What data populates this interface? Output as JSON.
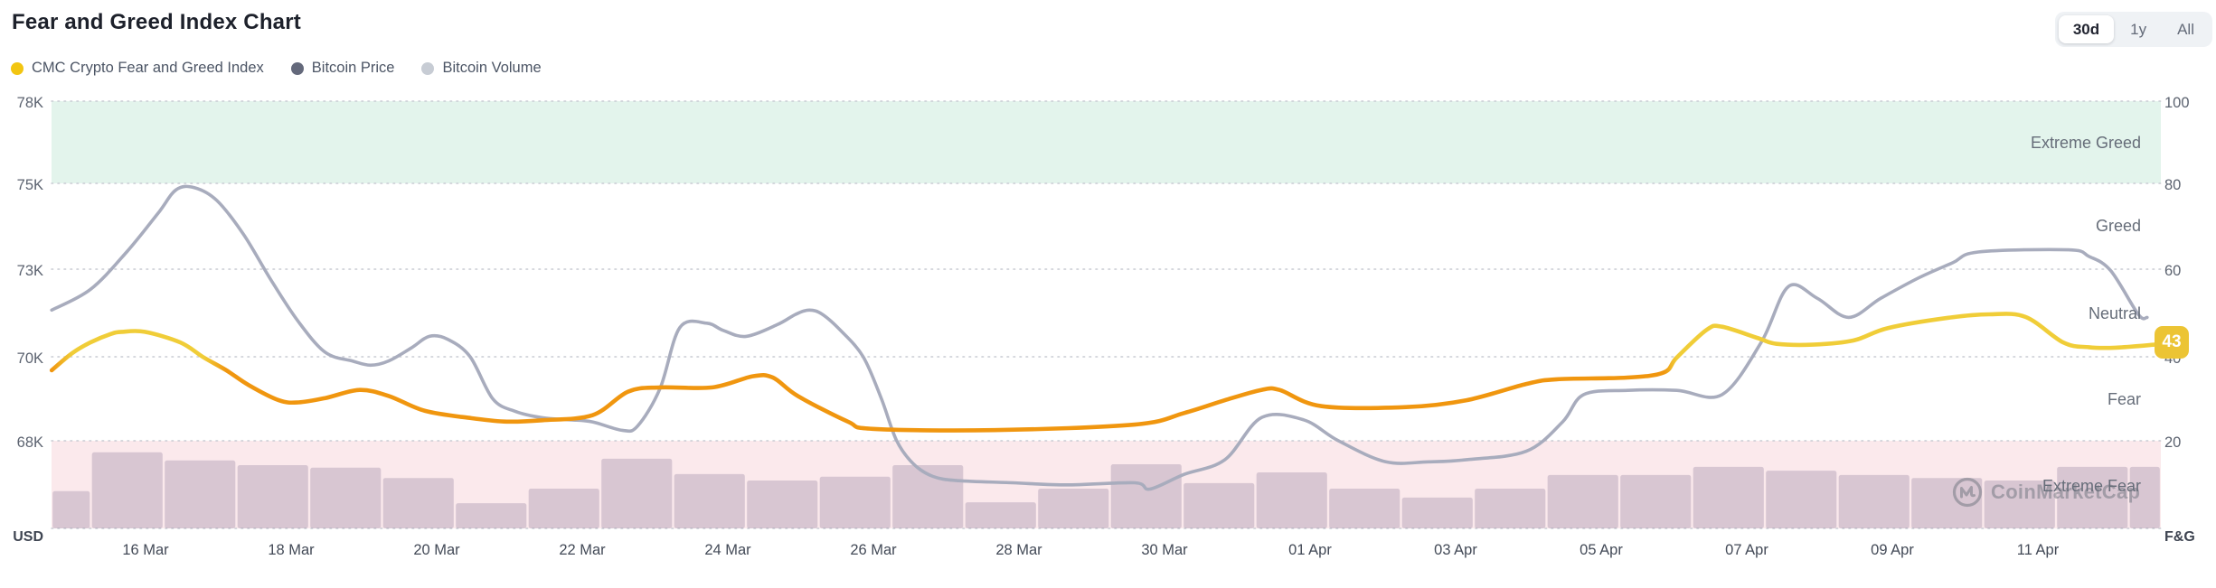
{
  "header": {
    "title": "Fear and Greed Index Chart",
    "ranges": [
      {
        "label": "30d",
        "active": true
      },
      {
        "label": "1y",
        "active": false
      },
      {
        "label": "All",
        "active": false
      }
    ]
  },
  "legend": {
    "items": [
      {
        "label": "CMC Crypto Fear and Greed Index",
        "color": "#f2c511"
      },
      {
        "label": "Bitcoin Price",
        "color": "#64697b"
      },
      {
        "label": "Bitcoin Volume",
        "color": "#c7ccd4"
      }
    ]
  },
  "axis": {
    "left_ticks": [
      "78K",
      "75K",
      "73K",
      "70K",
      "68K"
    ],
    "left_unit": "USD",
    "right_ticks": [
      "100",
      "80",
      "60",
      "40",
      "20"
    ],
    "right_unit": "F&G",
    "x_ticks": [
      "16 Mar",
      "18 Mar",
      "20 Mar",
      "22 Mar",
      "24 Mar",
      "26 Mar",
      "28 Mar",
      "30 Mar",
      "01 Apr",
      "03 Apr",
      "05 Apr",
      "07 Apr",
      "09 Apr",
      "11 Apr"
    ]
  },
  "zones": {
    "labels": [
      "Extreme Greed",
      "Greed",
      "Neutral",
      "Fear",
      "Extreme Fear"
    ]
  },
  "badge": {
    "value": "43",
    "color": "#ecc434"
  },
  "watermark": {
    "text": "CoinMarketCap"
  },
  "chart_data": {
    "type": "line",
    "title": "Fear and Greed Index Chart",
    "x_axis": {
      "unit": "days since 16 Mar",
      "tick_labels": [
        "16 Mar",
        "18 Mar",
        "20 Mar",
        "22 Mar",
        "24 Mar",
        "26 Mar",
        "28 Mar",
        "30 Mar",
        "01 Apr",
        "03 Apr",
        "05 Apr",
        "07 Apr",
        "09 Apr",
        "11 Apr"
      ],
      "tick_day_offsets": [
        0,
        2,
        4,
        6,
        8,
        10,
        12,
        14,
        16,
        18,
        20,
        22,
        24,
        26
      ],
      "range": [
        -1.3,
        27.7
      ]
    },
    "y_left_axis": {
      "label": "USD",
      "unit": "Bitcoin price, thousand USD",
      "ticks": [
        78,
        75,
        73,
        70,
        68
      ],
      "note": "ticks evenly spaced"
    },
    "y_right_axis": {
      "label": "F&G",
      "unit": "Fear & Greed index",
      "ticks": [
        100,
        80,
        60,
        40,
        20
      ],
      "range": [
        0,
        100
      ]
    },
    "bands": [
      {
        "label": "Extreme Greed",
        "range": [
          80,
          100
        ],
        "color": "#e3f4ec"
      },
      {
        "label": "Extreme Fear",
        "range": [
          0,
          20
        ],
        "color": "#fbe9ec"
      }
    ],
    "zone_labels": [
      {
        "label": "Extreme Greed",
        "at": 90
      },
      {
        "label": "Greed",
        "at": 70
      },
      {
        "label": "Neutral",
        "at": 50
      },
      {
        "label": "Fear",
        "at": 30
      },
      {
        "label": "Extreme Fear",
        "at": 10
      }
    ],
    "grid": "dotted horizontal lines at each tick",
    "series": [
      {
        "name": "CMC Crypto Fear and Greed Index",
        "type": "line",
        "axis": "right",
        "current_value": 43,
        "colors": {
          "below_40_fear": "#f0960f",
          "above_40_neutral": "#f0cd38"
        },
        "color_threshold": 40,
        "points": [
          [
            -1.29,
            37
          ],
          [
            -1.01,
            41
          ],
          [
            -0.76,
            43.5
          ],
          [
            -0.48,
            45.5
          ],
          [
            -0.32,
            46
          ],
          [
            -0.01,
            46
          ],
          [
            0.48,
            43.5
          ],
          [
            0.8,
            40
          ],
          [
            1.11,
            37
          ],
          [
            1.42,
            33.5
          ],
          [
            1.83,
            30
          ],
          [
            2.1,
            29.5
          ],
          [
            2.47,
            30.5
          ],
          [
            2.94,
            32.4
          ],
          [
            3.34,
            31
          ],
          [
            3.84,
            27.5
          ],
          [
            4.48,
            25.8
          ],
          [
            4.96,
            25
          ],
          [
            5.45,
            25.3
          ],
          [
            6.14,
            26.5
          ],
          [
            6.63,
            32
          ],
          [
            7.07,
            33
          ],
          [
            7.79,
            33
          ],
          [
            8.34,
            35.6
          ],
          [
            8.62,
            35.3
          ],
          [
            8.96,
            31
          ],
          [
            9.65,
            25
          ],
          [
            9.99,
            23.3
          ],
          [
            11.66,
            23
          ],
          [
            13.59,
            24.3
          ],
          [
            14.27,
            27
          ],
          [
            14.83,
            30
          ],
          [
            15.33,
            32.4
          ],
          [
            15.58,
            32.4
          ],
          [
            16.16,
            28.6
          ],
          [
            17.32,
            28.4
          ],
          [
            18.15,
            30
          ],
          [
            18.97,
            33.8
          ],
          [
            19.39,
            34.9
          ],
          [
            20.36,
            35.3
          ],
          [
            20.86,
            36.5
          ],
          [
            21.04,
            40
          ],
          [
            21.45,
            46.5
          ],
          [
            21.66,
            47.2
          ],
          [
            22.16,
            44.5
          ],
          [
            22.41,
            43.2
          ],
          [
            22.91,
            43
          ],
          [
            23.47,
            44
          ],
          [
            23.94,
            46.9
          ],
          [
            24.77,
            49.3
          ],
          [
            25.33,
            50.1
          ],
          [
            25.83,
            49.5
          ],
          [
            26.35,
            43.5
          ],
          [
            26.7,
            42.4
          ],
          [
            27.07,
            42.3
          ],
          [
            27.6,
            43
          ]
        ]
      },
      {
        "name": "Bitcoin Price",
        "type": "line",
        "axis": "left",
        "color": "#a8acbd",
        "points": [
          [
            -1.29,
            71.6
          ],
          [
            -0.76,
            72.3
          ],
          [
            -0.26,
            73.4
          ],
          [
            0.17,
            74.3
          ],
          [
            0.42,
            74.85
          ],
          [
            0.67,
            74.9
          ],
          [
            0.98,
            74.6
          ],
          [
            1.35,
            73.8
          ],
          [
            1.73,
            72.6
          ],
          [
            2.1,
            71.2
          ],
          [
            2.47,
            70.15
          ],
          [
            2.84,
            69.9
          ],
          [
            3.09,
            69.8
          ],
          [
            3.34,
            69.9
          ],
          [
            3.65,
            70.3
          ],
          [
            3.9,
            70.7
          ],
          [
            4.15,
            70.6
          ],
          [
            4.46,
            70.0
          ],
          [
            4.77,
            69.0
          ],
          [
            5.08,
            68.7
          ],
          [
            5.45,
            68.55
          ],
          [
            5.83,
            68.5
          ],
          [
            6.14,
            68.45
          ],
          [
            6.55,
            68.25
          ],
          [
            6.76,
            68.35
          ],
          [
            7.07,
            69.25
          ],
          [
            7.34,
            71.0
          ],
          [
            7.71,
            71.15
          ],
          [
            7.94,
            70.9
          ],
          [
            8.25,
            70.7
          ],
          [
            8.68,
            71.1
          ],
          [
            8.93,
            71.45
          ],
          [
            9.12,
            71.6
          ],
          [
            9.3,
            71.45
          ],
          [
            9.55,
            70.9
          ],
          [
            9.86,
            70.0
          ],
          [
            10.11,
            69.0
          ],
          [
            10.32,
            68.0
          ],
          [
            10.55,
            67.45
          ],
          [
            10.82,
            67.15
          ],
          [
            11.17,
            67.05
          ],
          [
            11.91,
            67.0
          ],
          [
            12.66,
            66.95
          ],
          [
            13.59,
            67.0
          ],
          [
            13.8,
            66.85
          ],
          [
            14.27,
            67.2
          ],
          [
            14.83,
            67.55
          ],
          [
            15.33,
            68.55
          ],
          [
            15.91,
            68.5
          ],
          [
            16.39,
            68.0
          ],
          [
            17.04,
            67.5
          ],
          [
            17.63,
            67.5
          ],
          [
            18.15,
            67.55
          ],
          [
            18.97,
            67.75
          ],
          [
            19.47,
            68.45
          ],
          [
            19.76,
            69.1
          ],
          [
            20.36,
            69.2
          ],
          [
            21.04,
            69.2
          ],
          [
            21.66,
            69.1
          ],
          [
            22.2,
            70.5
          ],
          [
            22.57,
            72.4
          ],
          [
            22.97,
            72.0
          ],
          [
            23.4,
            71.35
          ],
          [
            23.84,
            72.0
          ],
          [
            24.36,
            72.7
          ],
          [
            24.83,
            73.15
          ],
          [
            25.18,
            73.4
          ],
          [
            26.42,
            73.45
          ],
          [
            26.7,
            73.3
          ],
          [
            27.0,
            72.95
          ],
          [
            27.38,
            71.45
          ],
          [
            27.5,
            71.35
          ]
        ]
      },
      {
        "name": "Bitcoin Volume",
        "type": "bar",
        "color": "rgba(125,108,142,0.28)",
        "unit": "relative height in right-axis units (0-20 band)",
        "start_day": -1.29,
        "bar_width_days": 1,
        "values": [
          8.7,
          17.8,
          15.9,
          14.8,
          14.2,
          11.8,
          5.9,
          9.3,
          16.3,
          12.7,
          11.2,
          12.1,
          14.8,
          6.1,
          9.3,
          15.0,
          10.6,
          13.1,
          9.3,
          7.2,
          9.3,
          12.5,
          12.5,
          14.4,
          13.5,
          12.5,
          11.8,
          11.2,
          14.4,
          14.4
        ]
      }
    ]
  }
}
